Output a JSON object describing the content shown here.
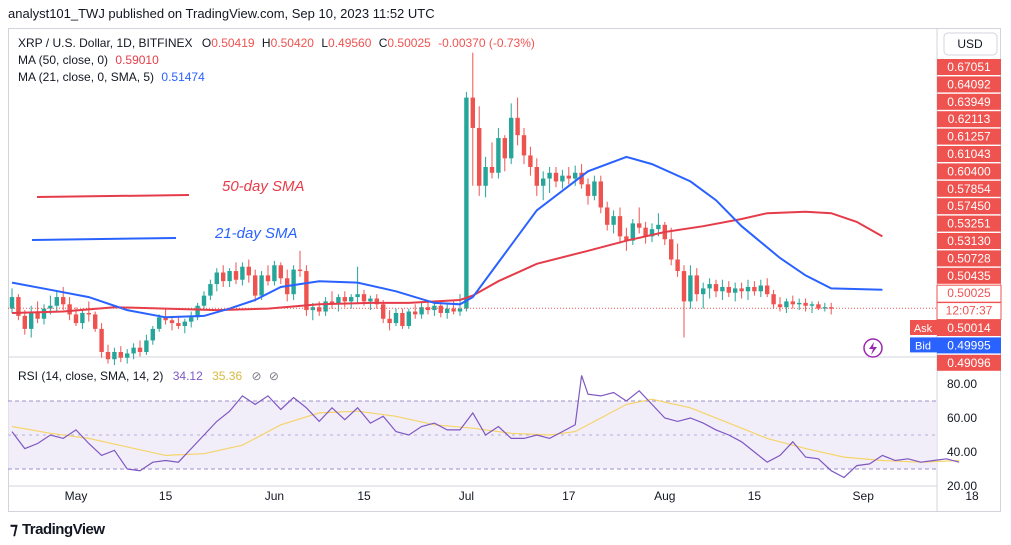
{
  "header": {
    "publisher_line": "analyst101_TWJ published on TradingView.com, Sep 10, 2023 11:52 UTC"
  },
  "legend": {
    "symbol": "XRP / U.S. Dollar, 1D, BITFINEX",
    "o_label": "O",
    "o": "0.50419",
    "h_label": "H",
    "h": "0.50420",
    "l_label": "L",
    "l": "0.49560",
    "c_label": "C",
    "c": "0.50025",
    "change": "-0.00370 (-0.73%)",
    "ma50_label": "MA (50, close, 0)",
    "ma50_value": "0.59010",
    "ma21_label": "MA (21, close, 0, SMA, 5)",
    "ma21_value": "0.51474",
    "rsi_label": "RSI (14, close, SMA, 14, 2)",
    "rsi_value": "34.12",
    "rsi_ma_value": "35.36"
  },
  "currency_button": "USD",
  "annotations": {
    "sma50": "50-day SMA",
    "sma21": "21-day SMA"
  },
  "price_scale": {
    "labels": [
      {
        "text": "0.67051",
        "value": 0.67051,
        "kind": "normal"
      },
      {
        "text": "0.64092",
        "value": 0.64092,
        "kind": "normal"
      },
      {
        "text": "0.63949",
        "value": 0.63949,
        "kind": "normal"
      },
      {
        "text": "0.62113",
        "value": 0.62113,
        "kind": "normal"
      },
      {
        "text": "0.61257",
        "value": 0.61257,
        "kind": "normal"
      },
      {
        "text": "0.61043",
        "value": 0.61043,
        "kind": "normal"
      },
      {
        "text": "0.60400",
        "value": 0.604,
        "kind": "normal"
      },
      {
        "text": "0.57854",
        "value": 0.57854,
        "kind": "normal"
      },
      {
        "text": "0.57450",
        "value": 0.5745,
        "kind": "normal"
      },
      {
        "text": "0.53251",
        "value": 0.53251,
        "kind": "normal"
      },
      {
        "text": "0.53130",
        "value": 0.5313,
        "kind": "normal"
      },
      {
        "text": "0.50728",
        "value": 0.50728,
        "kind": "normal"
      },
      {
        "text": "0.50435",
        "value": 0.50435,
        "kind": "normal"
      },
      {
        "text": "0.50025",
        "value": 0.50025,
        "kind": "current"
      },
      {
        "text": "12:07:37",
        "value": 0.49985,
        "kind": "countdown"
      },
      {
        "text": "0.50014",
        "value": 0.50014,
        "kind": "normal"
      },
      {
        "text": "0.49995",
        "value": 0.49995,
        "kind": "normal"
      },
      {
        "text": "0.49096",
        "value": 0.49096,
        "kind": "normal"
      }
    ],
    "ask_label": "Ask",
    "bid_label": "Bid"
  },
  "rsi_scale": [
    {
      "text": "80.00",
      "value": 80
    },
    {
      "text": "60.00",
      "value": 60
    },
    {
      "text": "40.00",
      "value": 40
    },
    {
      "text": "20.00",
      "value": 20
    }
  ],
  "time_axis": [
    {
      "text": "May",
      "day": 0
    },
    {
      "text": "15",
      "day": 14
    },
    {
      "text": "Jun",
      "day": 31
    },
    {
      "text": "15",
      "day": 45
    },
    {
      "text": "Jul",
      "day": 61
    },
    {
      "text": "17",
      "day": 77
    },
    {
      "text": "Aug",
      "day": 92
    },
    {
      "text": "15",
      "day": 106
    },
    {
      "text": "Sep",
      "day": 123
    },
    {
      "text": "18",
      "day": 140
    }
  ],
  "footer": {
    "brand": "TradingView"
  },
  "colors": {
    "up": "#26a69a",
    "down": "#ef5350",
    "ma50": "#e53c49",
    "ma21": "#2962ff",
    "rsi": "#7e57c2",
    "rsi_ma": "#f5d46a",
    "rsi_band": "#ede7f6"
  },
  "chart_data": {
    "type": "candlestick",
    "title": "XRP / U.S. Dollar, 1D, BITFINEX",
    "x_unit": "days since first visible candle (Apr 26, 2023)",
    "ylim": [
      0.47,
      0.69
    ],
    "rsi_ylim": [
      20,
      90
    ],
    "candles": [
      [
        0.5,
        0.514,
        0.497,
        0.508
      ],
      [
        0.508,
        0.51,
        0.492,
        0.495
      ],
      [
        0.495,
        0.499,
        0.482,
        0.486
      ],
      [
        0.486,
        0.502,
        0.48,
        0.498
      ],
      [
        0.498,
        0.505,
        0.49,
        0.493
      ],
      [
        0.493,
        0.503,
        0.489,
        0.5
      ],
      [
        0.5,
        0.509,
        0.496,
        0.502
      ],
      [
        0.502,
        0.512,
        0.498,
        0.508
      ],
      [
        0.508,
        0.515,
        0.499,
        0.503
      ],
      [
        0.503,
        0.508,
        0.492,
        0.496
      ],
      [
        0.496,
        0.501,
        0.488,
        0.49
      ],
      [
        0.49,
        0.5,
        0.486,
        0.497
      ],
      [
        0.497,
        0.505,
        0.491,
        0.496
      ],
      [
        0.496,
        0.498,
        0.484,
        0.486
      ],
      [
        0.486,
        0.49,
        0.466,
        0.47
      ],
      [
        0.47,
        0.475,
        0.462,
        0.465
      ],
      [
        0.465,
        0.473,
        0.461,
        0.47
      ],
      [
        0.47,
        0.474,
        0.463,
        0.466
      ],
      [
        0.466,
        0.472,
        0.462,
        0.469
      ],
      [
        0.469,
        0.476,
        0.465,
        0.473
      ],
      [
        0.473,
        0.478,
        0.467,
        0.47
      ],
      [
        0.47,
        0.482,
        0.468,
        0.478
      ],
      [
        0.478,
        0.488,
        0.475,
        0.486
      ],
      [
        0.486,
        0.496,
        0.484,
        0.494
      ],
      [
        0.494,
        0.5,
        0.489,
        0.492
      ],
      [
        0.492,
        0.495,
        0.485,
        0.49
      ],
      [
        0.49,
        0.495,
        0.486,
        0.488
      ],
      [
        0.488,
        0.493,
        0.483,
        0.491
      ],
      [
        0.491,
        0.498,
        0.487,
        0.494
      ],
      [
        0.494,
        0.504,
        0.492,
        0.502
      ],
      [
        0.502,
        0.512,
        0.499,
        0.509
      ],
      [
        0.509,
        0.52,
        0.506,
        0.517
      ],
      [
        0.517,
        0.528,
        0.512,
        0.525
      ],
      [
        0.525,
        0.53,
        0.515,
        0.519
      ],
      [
        0.519,
        0.528,
        0.515,
        0.526
      ],
      [
        0.526,
        0.532,
        0.517,
        0.52
      ],
      [
        0.52,
        0.532,
        0.516,
        0.529
      ],
      [
        0.529,
        0.534,
        0.518,
        0.523
      ],
      [
        0.523,
        0.527,
        0.505,
        0.509
      ],
      [
        0.509,
        0.526,
        0.506,
        0.523
      ],
      [
        0.523,
        0.53,
        0.516,
        0.519
      ],
      [
        0.519,
        0.533,
        0.516,
        0.53
      ],
      [
        0.53,
        0.532,
        0.517,
        0.521
      ],
      [
        0.521,
        0.527,
        0.505,
        0.51
      ],
      [
        0.51,
        0.53,
        0.506,
        0.527
      ],
      [
        0.527,
        0.54,
        0.522,
        0.526
      ],
      [
        0.526,
        0.53,
        0.495,
        0.499
      ],
      [
        0.499,
        0.504,
        0.492,
        0.501
      ],
      [
        0.501,
        0.505,
        0.495,
        0.498
      ],
      [
        0.498,
        0.508,
        0.495,
        0.505
      ],
      [
        0.505,
        0.512,
        0.5,
        0.503
      ],
      [
        0.503,
        0.51,
        0.498,
        0.508
      ],
      [
        0.508,
        0.512,
        0.501,
        0.505
      ],
      [
        0.505,
        0.51,
        0.5,
        0.508
      ],
      [
        0.508,
        0.529,
        0.503,
        0.51
      ],
      [
        0.51,
        0.513,
        0.502,
        0.505
      ],
      [
        0.505,
        0.509,
        0.499,
        0.507
      ],
      [
        0.507,
        0.51,
        0.5,
        0.503
      ],
      [
        0.503,
        0.506,
        0.49,
        0.493
      ],
      [
        0.493,
        0.499,
        0.485,
        0.49
      ],
      [
        0.49,
        0.5,
        0.488,
        0.497
      ],
      [
        0.497,
        0.5,
        0.486,
        0.488
      ],
      [
        0.488,
        0.5,
        0.486,
        0.498
      ],
      [
        0.498,
        0.503,
        0.493,
        0.496
      ],
      [
        0.496,
        0.505,
        0.493,
        0.501
      ],
      [
        0.501,
        0.506,
        0.496,
        0.499
      ],
      [
        0.499,
        0.505,
        0.495,
        0.502
      ],
      [
        0.502,
        0.505,
        0.494,
        0.497
      ],
      [
        0.497,
        0.503,
        0.493,
        0.5
      ],
      [
        0.5,
        0.505,
        0.496,
        0.498
      ],
      [
        0.498,
        0.51,
        0.495,
        0.5
      ],
      [
        0.5,
        0.65,
        0.498,
        0.646
      ],
      [
        0.646,
        0.677,
        0.585,
        0.625
      ],
      [
        0.625,
        0.64,
        0.578,
        0.585
      ],
      [
        0.585,
        0.605,
        0.577,
        0.598
      ],
      [
        0.598,
        0.615,
        0.59,
        0.594
      ],
      [
        0.594,
        0.625,
        0.59,
        0.618
      ],
      [
        0.618,
        0.62,
        0.595,
        0.604
      ],
      [
        0.604,
        0.642,
        0.6,
        0.632
      ],
      [
        0.632,
        0.646,
        0.613,
        0.62
      ],
      [
        0.62,
        0.625,
        0.6,
        0.606
      ],
      [
        0.606,
        0.612,
        0.592,
        0.598
      ],
      [
        0.598,
        0.604,
        0.578,
        0.585
      ],
      [
        0.585,
        0.595,
        0.575,
        0.59
      ],
      [
        0.59,
        0.598,
        0.58,
        0.594
      ],
      [
        0.594,
        0.598,
        0.584,
        0.588
      ],
      [
        0.588,
        0.596,
        0.583,
        0.592
      ],
      [
        0.592,
        0.598,
        0.586,
        0.59
      ],
      [
        0.59,
        0.599,
        0.585,
        0.594
      ],
      [
        0.594,
        0.6,
        0.583,
        0.586
      ],
      [
        0.586,
        0.59,
        0.572,
        0.578
      ],
      [
        0.578,
        0.592,
        0.575,
        0.588
      ],
      [
        0.588,
        0.592,
        0.566,
        0.57
      ],
      [
        0.57,
        0.574,
        0.554,
        0.558
      ],
      [
        0.558,
        0.568,
        0.552,
        0.564
      ],
      [
        0.564,
        0.57,
        0.545,
        0.55
      ],
      [
        0.55,
        0.556,
        0.54,
        0.547
      ],
      [
        0.547,
        0.562,
        0.544,
        0.559
      ],
      [
        0.559,
        0.57,
        0.552,
        0.556
      ],
      [
        0.556,
        0.56,
        0.545,
        0.55
      ],
      [
        0.55,
        0.559,
        0.546,
        0.555
      ],
      [
        0.555,
        0.566,
        0.55,
        0.558
      ],
      [
        0.558,
        0.56,
        0.544,
        0.548
      ],
      [
        0.548,
        0.556,
        0.53,
        0.534
      ],
      [
        0.534,
        0.545,
        0.522,
        0.526
      ],
      [
        0.526,
        0.53,
        0.48,
        0.505
      ],
      [
        0.505,
        0.53,
        0.5,
        0.523
      ],
      [
        0.523,
        0.528,
        0.505,
        0.51
      ],
      [
        0.51,
        0.518,
        0.5,
        0.514
      ],
      [
        0.514,
        0.521,
        0.507,
        0.517
      ],
      [
        0.517,
        0.52,
        0.508,
        0.512
      ],
      [
        0.512,
        0.52,
        0.506,
        0.515
      ],
      [
        0.515,
        0.519,
        0.508,
        0.511
      ],
      [
        0.511,
        0.518,
        0.505,
        0.514
      ],
      [
        0.514,
        0.518,
        0.507,
        0.512
      ],
      [
        0.512,
        0.52,
        0.506,
        0.515
      ],
      [
        0.515,
        0.519,
        0.509,
        0.512
      ],
      [
        0.512,
        0.52,
        0.508,
        0.516
      ],
      [
        0.516,
        0.521,
        0.508,
        0.51
      ],
      [
        0.51,
        0.513,
        0.5,
        0.503
      ],
      [
        0.503,
        0.508,
        0.498,
        0.501
      ],
      [
        0.501,
        0.507,
        0.497,
        0.505
      ],
      [
        0.505,
        0.509,
        0.5,
        0.503
      ],
      [
        0.503,
        0.507,
        0.499,
        0.504
      ],
      [
        0.504,
        0.507,
        0.498,
        0.502
      ],
      [
        0.502,
        0.505,
        0.497,
        0.503
      ],
      [
        0.503,
        0.505,
        0.499,
        0.5
      ],
      [
        0.5,
        0.504,
        0.498,
        0.501
      ],
      [
        0.501,
        0.504,
        0.496,
        0.5
      ]
    ],
    "ma50": [
      [
        0,
        0.497
      ],
      [
        8,
        0.498
      ],
      [
        16,
        0.501
      ],
      [
        24,
        0.5
      ],
      [
        32,
        0.499
      ],
      [
        40,
        0.5
      ],
      [
        48,
        0.503
      ],
      [
        56,
        0.504
      ],
      [
        62,
        0.504
      ],
      [
        70,
        0.506
      ],
      [
        72,
        0.509
      ],
      [
        76,
        0.519
      ],
      [
        82,
        0.531
      ],
      [
        90,
        0.54
      ],
      [
        96,
        0.547
      ],
      [
        102,
        0.553
      ],
      [
        108,
        0.557
      ],
      [
        114,
        0.562
      ],
      [
        118,
        0.566
      ],
      [
        124,
        0.567
      ],
      [
        128,
        0.566
      ],
      [
        132,
        0.56
      ],
      [
        136,
        0.55
      ]
    ],
    "ma21": [
      [
        0,
        0.518
      ],
      [
        6,
        0.513
      ],
      [
        12,
        0.508
      ],
      [
        18,
        0.499
      ],
      [
        24,
        0.494
      ],
      [
        30,
        0.495
      ],
      [
        34,
        0.5
      ],
      [
        38,
        0.506
      ],
      [
        42,
        0.515
      ],
      [
        48,
        0.519
      ],
      [
        54,
        0.518
      ],
      [
        60,
        0.512
      ],
      [
        66,
        0.504
      ],
      [
        70,
        0.503
      ],
      [
        72,
        0.508
      ],
      [
        76,
        0.532
      ],
      [
        82,
        0.568
      ],
      [
        90,
        0.595
      ],
      [
        96,
        0.605
      ],
      [
        100,
        0.6
      ],
      [
        106,
        0.588
      ],
      [
        110,
        0.575
      ],
      [
        114,
        0.557
      ],
      [
        120,
        0.535
      ],
      [
        124,
        0.523
      ],
      [
        128,
        0.514
      ],
      [
        136,
        0.513
      ]
    ],
    "rsi": [
      [
        0,
        52
      ],
      [
        2,
        42
      ],
      [
        4,
        45
      ],
      [
        6,
        50
      ],
      [
        8,
        48
      ],
      [
        10,
        53
      ],
      [
        12,
        45
      ],
      [
        14,
        38
      ],
      [
        16,
        41
      ],
      [
        18,
        30
      ],
      [
        20,
        29
      ],
      [
        22,
        34
      ],
      [
        24,
        35
      ],
      [
        26,
        34
      ],
      [
        28,
        42
      ],
      [
        30,
        50
      ],
      [
        32,
        58
      ],
      [
        34,
        64
      ],
      [
        36,
        73
      ],
      [
        38,
        68
      ],
      [
        40,
        73
      ],
      [
        42,
        65
      ],
      [
        44,
        72
      ],
      [
        46,
        66
      ],
      [
        48,
        58
      ],
      [
        50,
        66
      ],
      [
        52,
        59
      ],
      [
        54,
        66
      ],
      [
        56,
        57
      ],
      [
        58,
        61
      ],
      [
        60,
        52
      ],
      [
        62,
        50
      ],
      [
        64,
        55
      ],
      [
        66,
        57
      ],
      [
        68,
        53
      ],
      [
        70,
        53
      ],
      [
        72,
        63
      ],
      [
        74,
        50
      ],
      [
        76,
        55
      ],
      [
        78,
        48
      ],
      [
        80,
        48
      ],
      [
        82,
        50
      ],
      [
        84,
        48
      ],
      [
        86,
        52
      ],
      [
        88,
        56
      ],
      [
        89,
        85
      ],
      [
        90,
        74
      ],
      [
        92,
        73
      ],
      [
        94,
        75
      ],
      [
        96,
        70
      ],
      [
        98,
        76
      ],
      [
        100,
        68
      ],
      [
        102,
        60
      ],
      [
        104,
        58
      ],
      [
        106,
        60
      ],
      [
        108,
        57
      ],
      [
        110,
        53
      ],
      [
        112,
        50
      ],
      [
        114,
        46
      ],
      [
        116,
        40
      ],
      [
        118,
        34
      ],
      [
        120,
        38
      ],
      [
        122,
        46
      ],
      [
        124,
        37
      ],
      [
        126,
        36
      ],
      [
        128,
        29
      ],
      [
        130,
        25
      ],
      [
        132,
        32
      ],
      [
        134,
        33
      ],
      [
        136,
        38
      ],
      [
        138,
        35
      ],
      [
        140,
        36
      ],
      [
        142,
        34
      ],
      [
        144,
        35
      ],
      [
        146,
        36
      ],
      [
        148,
        34
      ]
    ],
    "rsi_ma": [
      [
        0,
        55
      ],
      [
        6,
        51
      ],
      [
        12,
        48
      ],
      [
        18,
        43
      ],
      [
        24,
        38
      ],
      [
        30,
        39
      ],
      [
        36,
        44
      ],
      [
        42,
        56
      ],
      [
        48,
        63
      ],
      [
        54,
        64
      ],
      [
        60,
        61
      ],
      [
        66,
        56
      ],
      [
        72,
        54
      ],
      [
        78,
        51
      ],
      [
        84,
        50
      ],
      [
        88,
        52
      ],
      [
        92,
        60
      ],
      [
        96,
        68
      ],
      [
        100,
        71
      ],
      [
        106,
        66
      ],
      [
        112,
        57
      ],
      [
        118,
        48
      ],
      [
        124,
        42
      ],
      [
        130,
        37
      ],
      [
        136,
        35
      ],
      [
        142,
        34
      ],
      [
        148,
        35
      ]
    ],
    "current_price": 0.50025
  }
}
